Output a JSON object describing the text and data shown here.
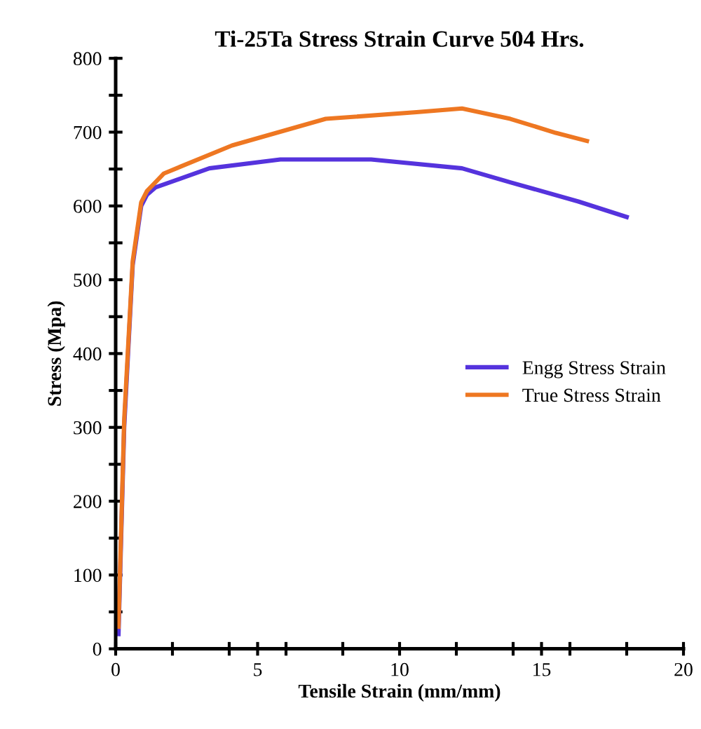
{
  "chart_data": {
    "type": "line",
    "title": "Ti-25Ta Stress Strain Curve 504 Hrs.",
    "xlabel": "Tensile Strain (mm/mm)",
    "ylabel": "Stress (Mpa)",
    "xlim": [
      0,
      20
    ],
    "ylim": [
      0,
      800
    ],
    "xticks": [
      0,
      {
        "value": 2,
        "label": null
      },
      {
        "value": 4,
        "label": null
      },
      5,
      {
        "value": 6,
        "label": null
      },
      {
        "value": 8,
        "label": null
      },
      10,
      {
        "value": 12,
        "label": null
      },
      {
        "value": 14,
        "label": null
      },
      15,
      {
        "value": 16,
        "label": null
      },
      {
        "value": 18,
        "label": null
      },
      20
    ],
    "yticks": [
      0,
      {
        "value": 50,
        "label": null
      },
      100,
      {
        "value": 150,
        "label": null
      },
      200,
      {
        "value": 250,
        "label": null
      },
      300,
      {
        "value": 350,
        "label": null
      },
      400,
      {
        "value": 450,
        "label": null
      },
      500,
      {
        "value": 550,
        "label": null
      },
      600,
      {
        "value": 650,
        "label": null
      },
      700,
      {
        "value": 750,
        "label": null
      },
      800
    ],
    "grid": false,
    "legend": "right",
    "marker": "none",
    "line_style": "solid",
    "series": [
      {
        "name": "Engg Stress Strain",
        "color": "#5533dd",
        "x": [
          0.1,
          0.3,
          0.6,
          0.9,
          1.1,
          1.4,
          3.3,
          5.8,
          9.0,
          12.2,
          13.9,
          16.3,
          18.0
        ],
        "values": [
          20,
          300,
          520,
          600,
          615,
          625,
          651,
          663,
          663,
          651,
          632,
          606,
          585
        ]
      },
      {
        "name": "True Stress Strain",
        "color": "#ee7722",
        "x": [
          0.1,
          0.3,
          0.6,
          0.9,
          1.1,
          1.7,
          4.1,
          7.4,
          10.6,
          12.2,
          13.9,
          15.5,
          16.6
        ],
        "values": [
          30,
          310,
          525,
          605,
          620,
          644,
          682,
          718,
          727,
          732,
          718,
          699,
          688
        ]
      }
    ]
  }
}
